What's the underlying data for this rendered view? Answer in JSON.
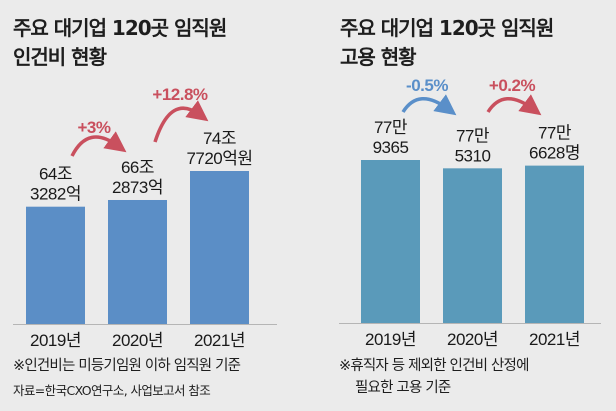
{
  "chart_data": [
    {
      "type": "bar",
      "title": "주요 대기업 120곳 임직원 인건비 현황",
      "title_lines": [
        "주요 대기업 120곳 임직원",
        "인건비 현황"
      ],
      "categories": [
        "2019년",
        "2020년",
        "2021년"
      ],
      "values": [
        64.3282,
        66.2873,
        74.772
      ],
      "unit": "조원",
      "data_labels": [
        [
          "64조",
          "3282억"
        ],
        [
          "66조",
          "2873억"
        ],
        [
          "74조",
          "7720억원"
        ]
      ],
      "changes": [
        {
          "label": "+3%",
          "color": "#c9505e"
        },
        {
          "label": "+12.8%",
          "color": "#c9505e"
        }
      ],
      "bar_color": "#5b8ec6",
      "note": "※인건비는 미등기임원 이하 임직원 기준",
      "source": "자료=한국CXO연구소, 사업보고서 참조"
    },
    {
      "type": "bar",
      "title": "주요 대기업 120곳 임직원 고용 현황",
      "title_lines": [
        "주요 대기업 120곳 임직원",
        "고용 현황"
      ],
      "categories": [
        "2019년",
        "2020년",
        "2021년"
      ],
      "values": [
        779365,
        775310,
        776628
      ],
      "unit": "명",
      "data_labels": [
        [
          "77만",
          "9365"
        ],
        [
          "77만",
          "5310"
        ],
        [
          "77만",
          "6628명"
        ]
      ],
      "changes": [
        {
          "label": "-0.5%",
          "color": "#5a8fc9"
        },
        {
          "label": "+0.2%",
          "color": "#c9505e"
        }
      ],
      "bar_color": "#5a9aba",
      "note_lines": [
        "※휴직자 등 제외한 인건비 산정에",
        "필요한 고용 기준"
      ]
    }
  ]
}
